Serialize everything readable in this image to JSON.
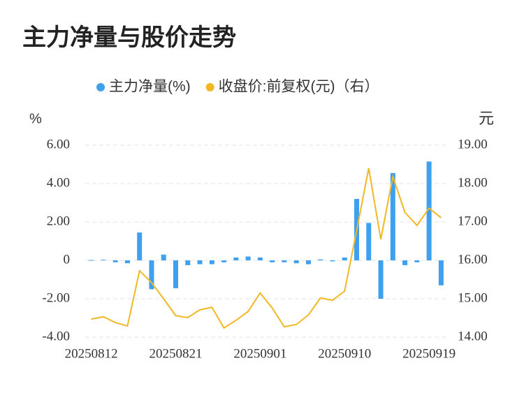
{
  "chart_data": {
    "type": "bar_line",
    "title": "主力净量与股价走势",
    "y_label": "%",
    "y2_label": "元",
    "categories": [
      "20250812",
      null,
      null,
      null,
      null,
      null,
      null,
      "20250821",
      null,
      null,
      null,
      null,
      null,
      null,
      "20250901",
      null,
      null,
      null,
      null,
      null,
      null,
      "20250910",
      null,
      null,
      null,
      null,
      null,
      null,
      "20250919",
      null
    ],
    "series": [
      {
        "name": "主力净量(%)",
        "type": "bar",
        "color": "#3ea0ee",
        "values": [
          0.02,
          0.03,
          -0.1,
          -0.15,
          1.45,
          -1.5,
          0.3,
          -1.45,
          -0.25,
          -0.2,
          -0.2,
          -0.1,
          0.15,
          0.2,
          0.15,
          -0.1,
          -0.1,
          -0.15,
          -0.2,
          0.05,
          -0.05,
          0.15,
          3.2,
          1.95,
          -2.0,
          4.55,
          -0.25,
          -0.1,
          5.15,
          -1.3
        ]
      },
      {
        "name": "收盘价:前复权(元)（右）",
        "type": "line",
        "axis": "y2",
        "color": "#f2b824",
        "values": [
          14.47,
          14.53,
          14.38,
          14.29,
          15.73,
          15.42,
          15.0,
          14.56,
          14.51,
          14.71,
          14.78,
          14.24,
          14.44,
          14.67,
          15.15,
          14.76,
          14.27,
          14.33,
          14.58,
          15.02,
          14.96,
          15.2,
          16.78,
          18.4,
          16.55,
          18.18,
          17.25,
          16.91,
          17.36,
          17.11
        ]
      }
    ],
    "ylim": [
      -4,
      6
    ],
    "yticks": [
      {
        "value": -4,
        "label": "-4.00"
      },
      {
        "value": -2,
        "label": "-2.00"
      },
      0,
      {
        "value": 2,
        "label": "2.00"
      },
      {
        "value": 4,
        "label": "4.00"
      },
      {
        "value": 6,
        "label": "6.00"
      }
    ],
    "y2lim": [
      14,
      19
    ],
    "y2ticks": [
      {
        "value": 14,
        "label": "14.00"
      },
      {
        "value": 15,
        "label": "15.00"
      },
      {
        "value": 16,
        "label": "16.00"
      },
      {
        "value": 17,
        "label": "17.00"
      },
      {
        "value": 18,
        "label": "18.00"
      },
      {
        "value": 19,
        "label": "19.00"
      }
    ],
    "grid": true
  }
}
